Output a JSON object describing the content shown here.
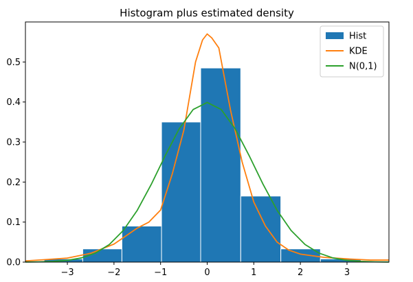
{
  "chart_data": {
    "type": "bar",
    "title": "Histogram plus estimated density",
    "xlabel": "",
    "ylabel": "",
    "xlim": [
      -3.9,
      3.9
    ],
    "ylim": [
      0,
      0.6
    ],
    "grid": false,
    "legend_position": "top-right",
    "xticks": [
      -3,
      -2,
      -1,
      0,
      1,
      2,
      3
    ],
    "xtick_labels": [
      "−3",
      "−2",
      "−1",
      "0",
      "1",
      "2",
      "3"
    ],
    "yticks": [
      0.0,
      0.1,
      0.2,
      0.3,
      0.4,
      0.5
    ],
    "ytick_labels": [
      "0.0",
      "0.1",
      "0.2",
      "0.3",
      "0.4",
      "0.5"
    ],
    "histogram": {
      "name": "Hist",
      "color": "#1f77b4",
      "bin_edges": [
        -3.5,
        -2.67,
        -1.83,
        -0.98,
        -0.14,
        0.72,
        1.58,
        2.43,
        3.3
      ],
      "values": [
        0.008,
        0.033,
        0.09,
        0.35,
        0.485,
        0.165,
        0.033,
        0.008
      ]
    },
    "series": [
      {
        "name": "KDE",
        "color": "#ff7f0e",
        "x": [
          -3.9,
          -3.5,
          -3.0,
          -2.5,
          -2.0,
          -1.75,
          -1.5,
          -1.25,
          -1.0,
          -0.75,
          -0.5,
          -0.25,
          -0.1,
          0.0,
          0.1,
          0.25,
          0.5,
          0.75,
          1.0,
          1.25,
          1.5,
          1.75,
          2.0,
          2.5,
          3.0,
          3.5,
          3.9
        ],
        "y": [
          0.003,
          0.006,
          0.01,
          0.022,
          0.045,
          0.065,
          0.085,
          0.1,
          0.13,
          0.22,
          0.33,
          0.5,
          0.555,
          0.57,
          0.56,
          0.535,
          0.38,
          0.25,
          0.15,
          0.09,
          0.05,
          0.03,
          0.02,
          0.012,
          0.008,
          0.005,
          0.005
        ]
      },
      {
        "name": "N(0,1)",
        "color": "#2ca02c",
        "x": [
          -3.9,
          -3.6,
          -3.3,
          -3.0,
          -2.7,
          -2.4,
          -2.1,
          -1.8,
          -1.5,
          -1.2,
          -0.9,
          -0.6,
          -0.3,
          0.0,
          0.3,
          0.6,
          0.9,
          1.2,
          1.5,
          1.8,
          2.1,
          2.4,
          2.7,
          3.0,
          3.3,
          3.6,
          3.9
        ],
        "y": [
          0.0002,
          0.0006,
          0.0017,
          0.0044,
          0.0104,
          0.0224,
          0.044,
          0.079,
          0.1295,
          0.1942,
          0.2661,
          0.3332,
          0.3814,
          0.3989,
          0.3814,
          0.3332,
          0.2661,
          0.1942,
          0.1295,
          0.079,
          0.044,
          0.0224,
          0.0104,
          0.0044,
          0.0017,
          0.0006,
          0.0002
        ]
      }
    ]
  }
}
